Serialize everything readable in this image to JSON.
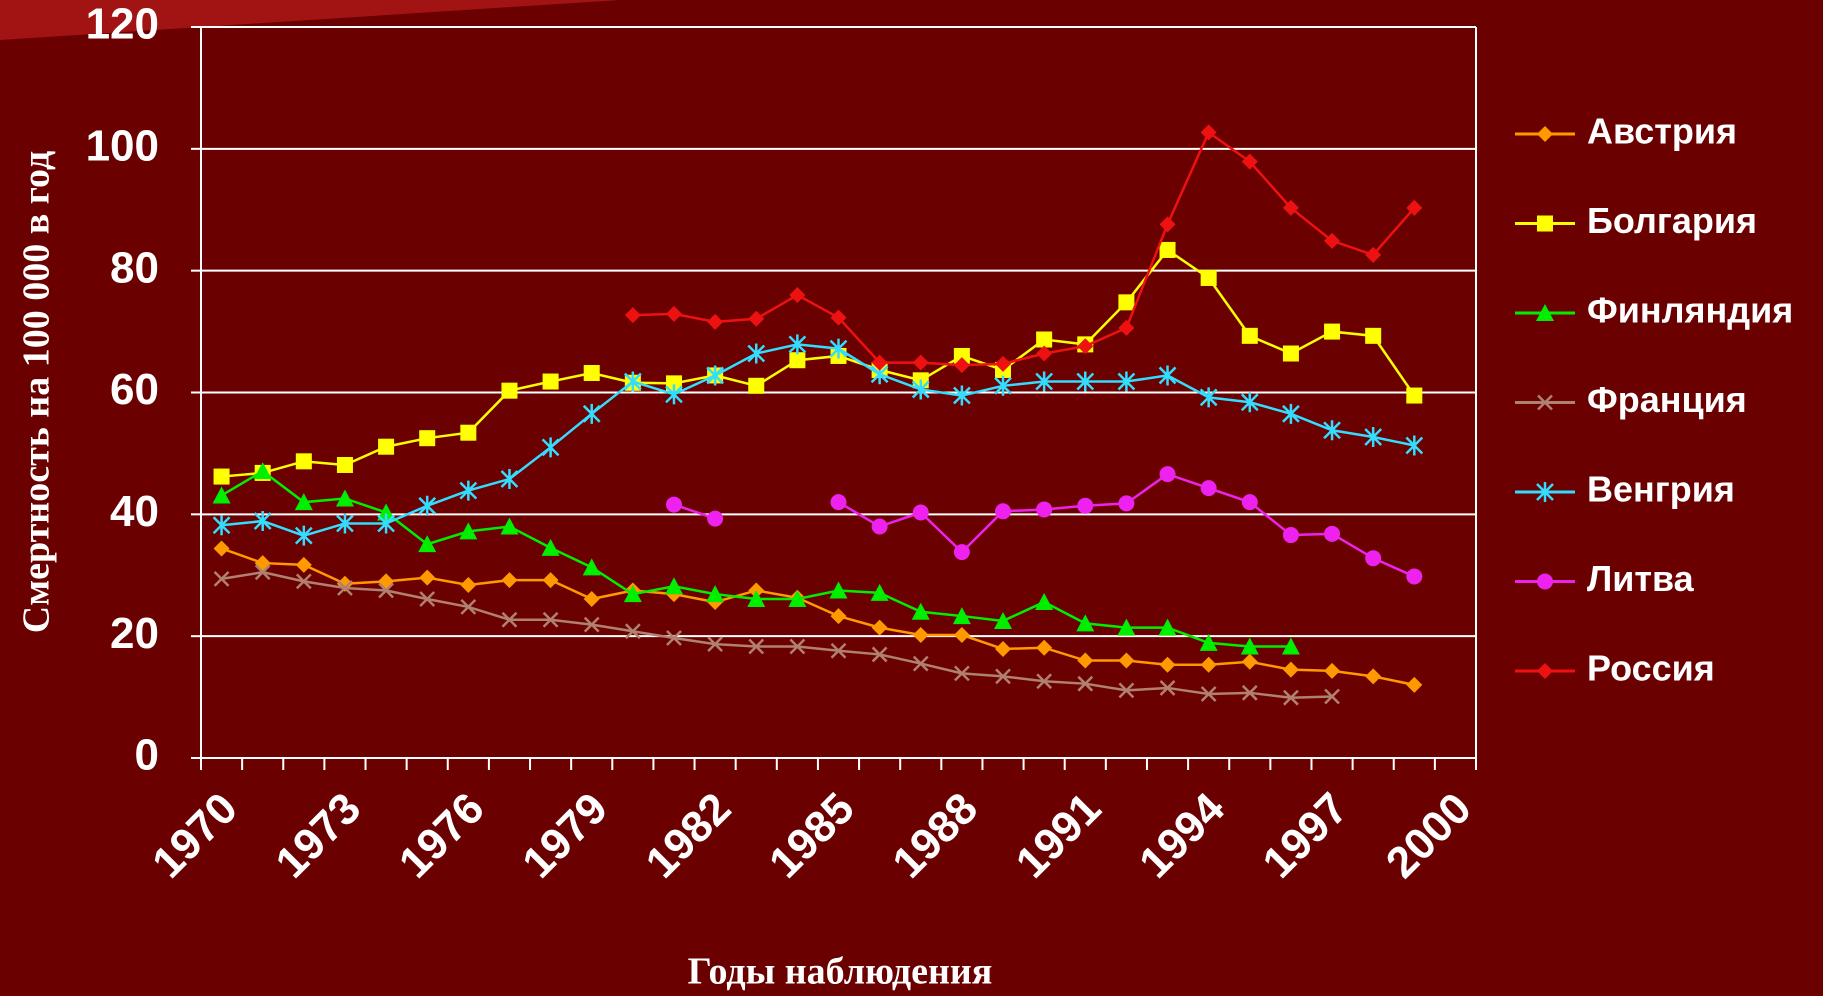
{
  "chart_data": {
    "type": "line",
    "y_label": "Смертность на 100 000 в год",
    "x_label": "Годы наблюдения",
    "categories": [
      "1970",
      null,
      null,
      "1973",
      null,
      null,
      "1976",
      null,
      null,
      "1979",
      null,
      null,
      "1982",
      null,
      null,
      "1985",
      null,
      null,
      "1988",
      null,
      null,
      "1991",
      null,
      null,
      "1994",
      null,
      null,
      "1997",
      null,
      null,
      "2000"
    ],
    "ylim": [
      0,
      120
    ],
    "yticks": [
      0,
      20,
      40,
      60,
      80,
      100,
      120
    ],
    "grid": true,
    "legend": "right",
    "series": [
      {
        "name": "Австрия",
        "color": "#ff9900",
        "marker": "diamond",
        "values": [
          34.4,
          32,
          31.7,
          28.6,
          29,
          29.6,
          28.4,
          29.2,
          29.2,
          26.1,
          27.5,
          26.9,
          25.6,
          27.5,
          26.3,
          23.3,
          21.4,
          20.2,
          20.2,
          17.9,
          18.1,
          16,
          16,
          15.3,
          15.3,
          15.8,
          14.5,
          14.3,
          13.4,
          12,
          null
        ]
      },
      {
        "name": "Болгария",
        "color": "#ffff00",
        "marker": "square",
        "values": [
          46.2,
          46.8,
          48.7,
          48.1,
          51.1,
          52.5,
          53.4,
          60.3,
          61.8,
          63.2,
          61.6,
          61.5,
          62.8,
          61.1,
          65.3,
          66,
          63.7,
          62,
          66,
          63.7,
          68.7,
          67.9,
          74.8,
          83.4,
          78.8,
          69.3,
          66.4,
          70,
          69.3,
          59.5,
          null
        ]
      },
      {
        "name": "Финляндия",
        "color": "#00ee00",
        "marker": "triangle",
        "values": [
          43.1,
          47.1,
          42,
          42.6,
          40.3,
          35.1,
          37.2,
          38,
          34.5,
          31.3,
          26.9,
          28.2,
          26.9,
          26.1,
          26.1,
          27.5,
          27.1,
          24,
          23.3,
          22.5,
          25.6,
          22.1,
          21.4,
          21.4,
          18.9,
          18.3,
          18.3,
          null,
          null,
          null,
          null
        ]
      },
      {
        "name": "Франция",
        "color": "#b08070",
        "marker": "x",
        "values": [
          29.4,
          30.5,
          29,
          27.9,
          27.5,
          26.1,
          24.8,
          22.7,
          22.7,
          21.9,
          20.8,
          19.7,
          18.7,
          18.3,
          18.3,
          17.6,
          17,
          15.5,
          13.9,
          13.4,
          12.6,
          12.2,
          11.1,
          11.5,
          10.5,
          10.7,
          9.9,
          10.1,
          null,
          null,
          null
        ]
      },
      {
        "name": "Венгрия",
        "color": "#33ddff",
        "marker": "star",
        "values": [
          38.2,
          38.9,
          36.5,
          38.5,
          38.5,
          41.4,
          43.9,
          45.8,
          51,
          56.5,
          61.8,
          59.7,
          62.8,
          66.4,
          67.9,
          67.2,
          63,
          60.5,
          59.5,
          61.1,
          61.8,
          61.8,
          61.8,
          62.8,
          59.2,
          58.4,
          56.5,
          53.8,
          52.7,
          51.3,
          null
        ]
      },
      {
        "name": "Литва",
        "color": "#ee22ee",
        "marker": "circle",
        "values": [
          null,
          null,
          null,
          null,
          null,
          null,
          null,
          null,
          null,
          null,
          null,
          41.6,
          39.3,
          null,
          null,
          42,
          38,
          40.3,
          33.8,
          40.5,
          40.8,
          41.4,
          41.8,
          46.6,
          44.3,
          42,
          36.6,
          36.8,
          32.8,
          29.8,
          null
        ]
      },
      {
        "name": "Россия",
        "color": "#ee1111",
        "marker": "diamond",
        "values": [
          null,
          null,
          null,
          null,
          null,
          null,
          null,
          null,
          null,
          null,
          72.7,
          72.9,
          71.6,
          72.1,
          76,
          72.3,
          64.9,
          64.9,
          64.5,
          64.7,
          66.4,
          67.6,
          70.6,
          87.6,
          102.7,
          97.9,
          90.3,
          84.9,
          82.6,
          90.3,
          null
        ]
      }
    ]
  }
}
